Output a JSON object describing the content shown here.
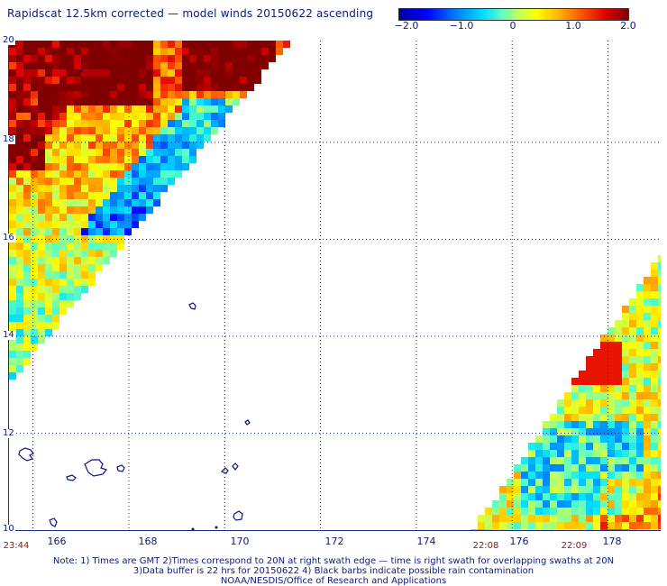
{
  "title": "Rapidscat 12.5km corrected — model winds 20150622 ascending",
  "colorbar": {
    "ticks": [
      "−2.0",
      "−1.0",
      "0",
      "1.0",
      "2.0"
    ],
    "range": [
      -2.0,
      2.0
    ]
  },
  "axes": {
    "lat_labels": [
      "20",
      "18",
      "16",
      "14",
      "12",
      "10"
    ],
    "lon_labels": [
      "166",
      "168",
      "170",
      "172",
      "174",
      "176",
      "178"
    ]
  },
  "time_labels": [
    "23:44",
    "22:08",
    "22:09"
  ],
  "notes": [
    "Note: 1) Times are GMT 2)Times correspond to 20N at right swath edge — time is right swath for overlapping swaths at 20N",
    "3)Data buffer is 22 hrs for 20150622 4) Black barbs indicate possible rain contamination",
    "NOAA/NESDIS/Office of Research and Applications"
  ],
  "map_data": {
    "lon_range": [
      165.5,
      179.1
    ],
    "lat_range": [
      10.0,
      20.1
    ],
    "grid_lons": [
      166,
      168,
      170,
      172,
      174,
      176,
      178
    ],
    "grid_lats": [
      12,
      14,
      16,
      18
    ]
  },
  "colors": {
    "text": "#0b1a7a",
    "time_text": "#8b1a1a",
    "coast": "#0a1580",
    "grid": "#1a2a8a"
  }
}
